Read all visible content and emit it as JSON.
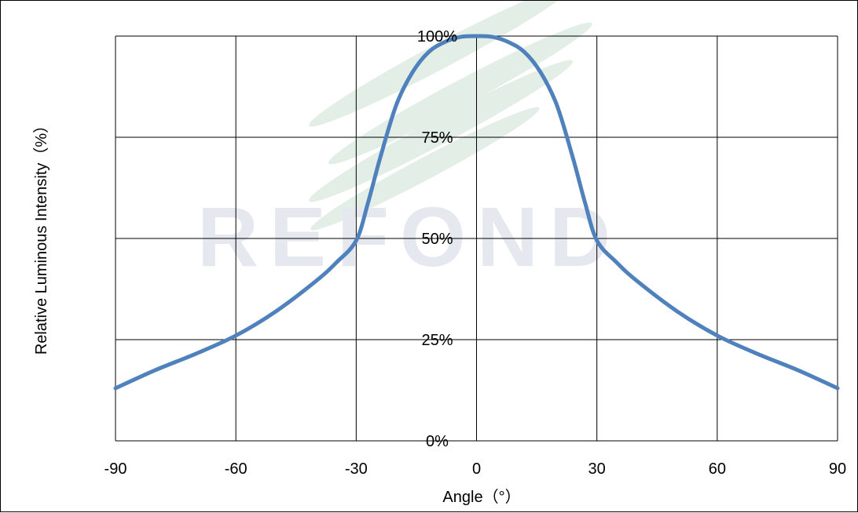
{
  "chart_data": {
    "type": "line",
    "title": "",
    "xlabel": "Angle（°）",
    "ylabel": "Relative Luminous Intensity（%）",
    "xlim": [
      -90,
      90
    ],
    "ylim": [
      0,
      100
    ],
    "x_ticks": [
      "-90",
      "-60",
      "-30",
      "0",
      "30",
      "60",
      "90"
    ],
    "y_ticks": [
      "0%",
      "25%",
      "50%",
      "75%",
      "100%"
    ],
    "grid": true,
    "legend": "none",
    "series": [
      {
        "color": "#4f81bd",
        "x": [
          -90,
          -80,
          -70,
          -60,
          -50,
          -40,
          -35,
          -30,
          -27,
          -24,
          -20,
          -16,
          -12,
          -8,
          -4,
          0,
          4,
          8,
          12,
          16,
          20,
          24,
          27,
          30,
          35,
          40,
          50,
          60,
          70,
          80,
          90
        ],
        "y": [
          13,
          17.5,
          21.5,
          26,
          32,
          39.5,
          44,
          49.5,
          59,
          70,
          83,
          91,
          96,
          98.5,
          99.8,
          100,
          99.8,
          98.5,
          96,
          91,
          83,
          70,
          59,
          49.5,
          44,
          39.5,
          32,
          26,
          21.5,
          17.5,
          13
        ]
      }
    ]
  },
  "watermark": {
    "text": "REFOND",
    "color": "#e6e8ef",
    "stripe_color": "#e3efe6"
  }
}
